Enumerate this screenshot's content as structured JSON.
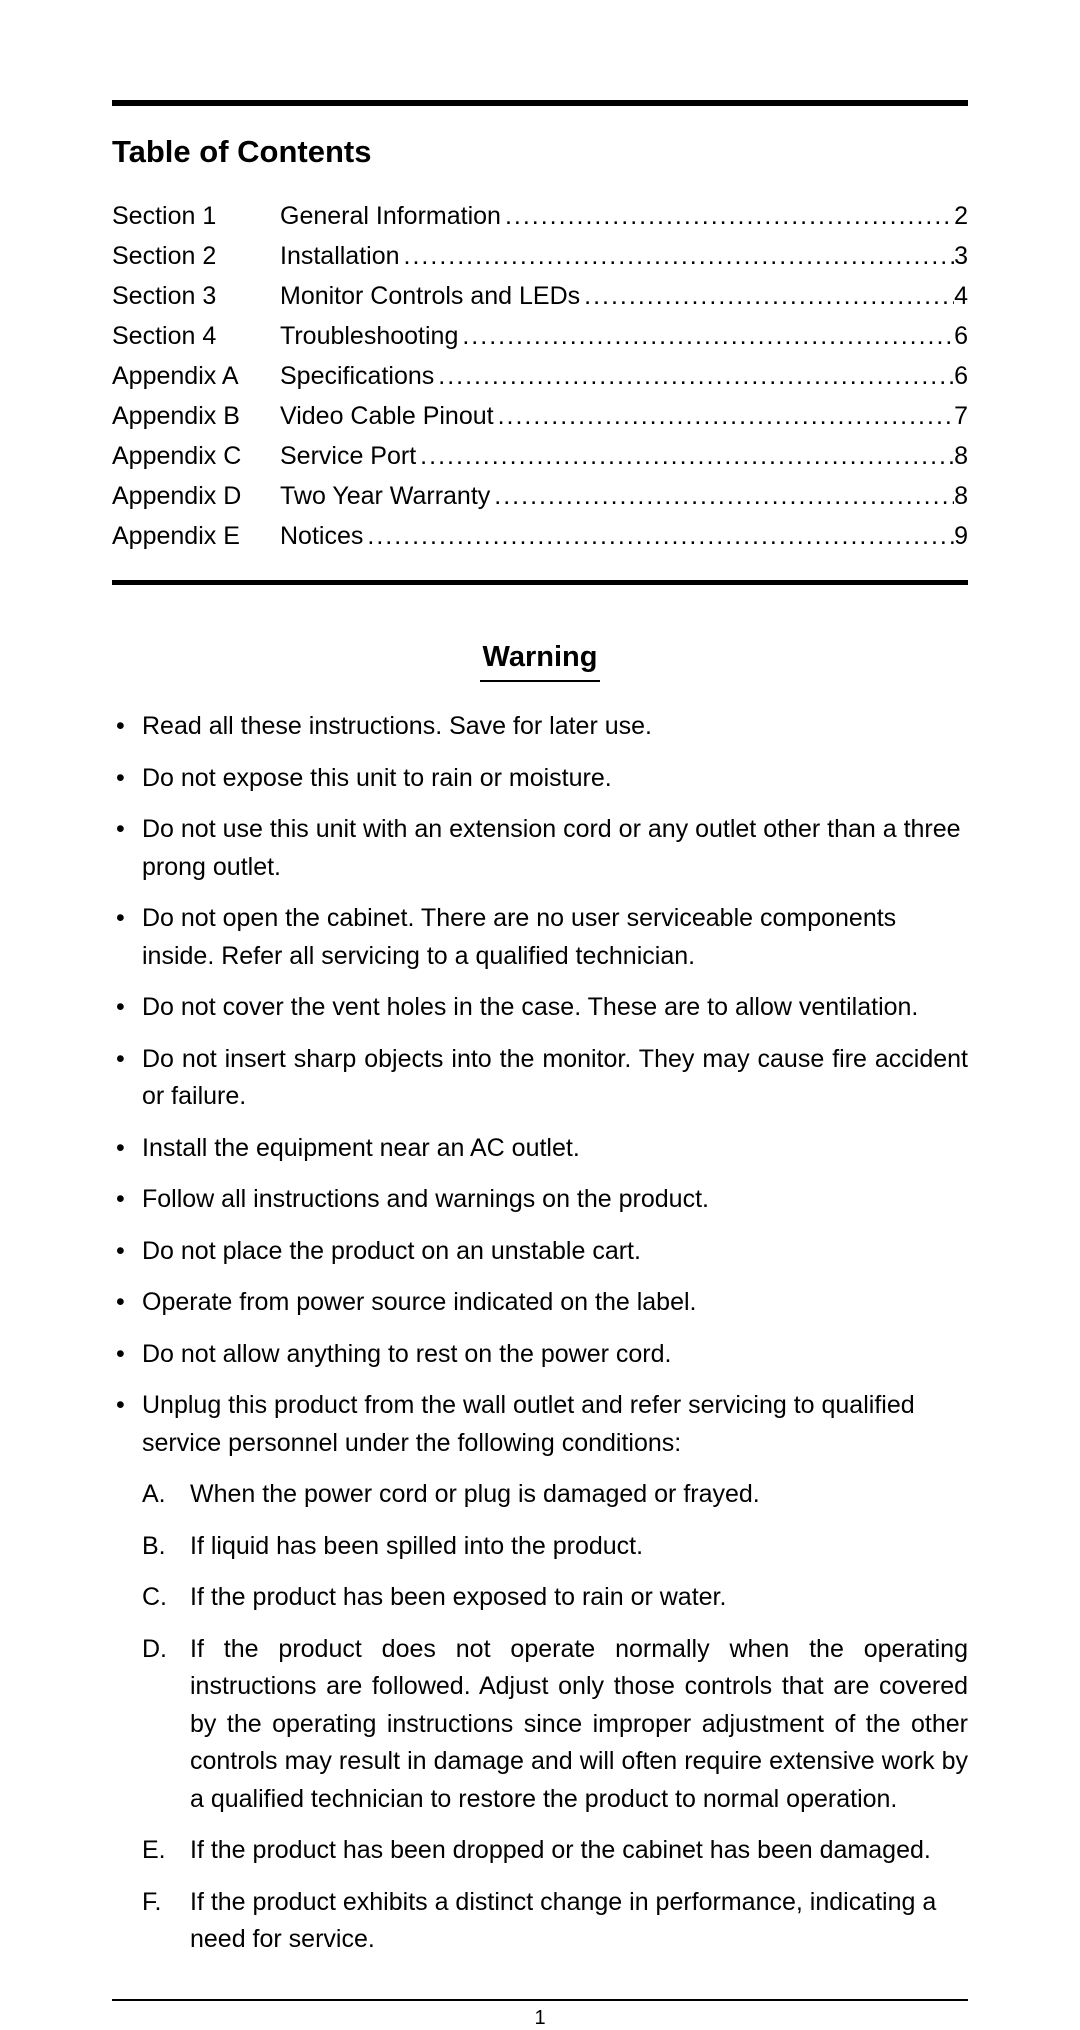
{
  "toc": {
    "title": "Table of Contents",
    "entries": [
      {
        "label": "Section 1",
        "name": "General Information",
        "page": "2"
      },
      {
        "label": "Section 2",
        "name": "Installation",
        "page": "3"
      },
      {
        "label": "Section 3",
        "name": "Monitor Controls and LEDs",
        "page": "4"
      },
      {
        "label": "Section 4",
        "name": "Troubleshooting",
        "page": "6"
      },
      {
        "label": "Appendix A",
        "name": "Specifications",
        "page": "6"
      },
      {
        "label": "Appendix B",
        "name": "Video Cable Pinout",
        "page": "7"
      },
      {
        "label": "Appendix C",
        "name": "Service Port",
        "page": "8"
      },
      {
        "label": "Appendix D",
        "name": "Two Year Warranty",
        "page": "8"
      },
      {
        "label": "Appendix E",
        "name": "Notices",
        "page": "9"
      }
    ]
  },
  "warning": {
    "title": "Warning",
    "bullets": [
      {
        "text": "Read all these instructions. Save for later use.",
        "justify": false
      },
      {
        "text": "Do not expose this unit to rain or moisture.",
        "justify": false
      },
      {
        "text": "Do not use this unit with an extension cord or any outlet other than a three prong outlet.",
        "justify": false
      },
      {
        "text": "Do not open the cabinet. There are no user serviceable components inside. Refer all servicing to a qualified technician.",
        "justify": false
      },
      {
        "text": "Do not cover the vent holes in the case. These are to allow ventilation.",
        "justify": false
      },
      {
        "text": "Do not insert sharp objects into the monitor. They may cause fire accident or failure.",
        "justify": true
      },
      {
        "text": "Install the equipment near an AC outlet.",
        "justify": false
      },
      {
        "text": "Follow all instructions and warnings on the product.",
        "justify": false
      },
      {
        "text": "Do not place the product on an unstable cart.",
        "justify": false
      },
      {
        "text": "Operate from power source indicated on the label.",
        "justify": false
      },
      {
        "text": "Do not allow anything to rest on the power cord.",
        "justify": false
      },
      {
        "text": "Unplug this product from the wall outlet and refer servicing to qualified service personnel under the following conditions:",
        "justify": false,
        "sub": [
          {
            "letter": "A.",
            "text": "When the power cord or plug is damaged or frayed.",
            "justify": false
          },
          {
            "letter": "B.",
            "text": "If liquid has been spilled into the product.",
            "justify": false
          },
          {
            "letter": "C.",
            "text": "If the product has been exposed to rain or water.",
            "justify": false
          },
          {
            "letter": "D.",
            "text": "If the product does not operate normally when the operating instructions are followed. Adjust only those controls that are covered by the operating instructions since improper adjustment of the other controls may result in damage and will often require extensive work by a qualified technician to restore the product to normal operation.",
            "justify": true
          },
          {
            "letter": "E.",
            "text": "If the product has been dropped or the cabinet has been damaged.",
            "justify": false
          },
          {
            "letter": "F.",
            "text": "If the product exhibits a distinct change in performance, indicating a need for service.",
            "justify": false
          }
        ]
      }
    ]
  },
  "pageNumber": "1",
  "style": {
    "dots": "............................................................................................................................"
  }
}
